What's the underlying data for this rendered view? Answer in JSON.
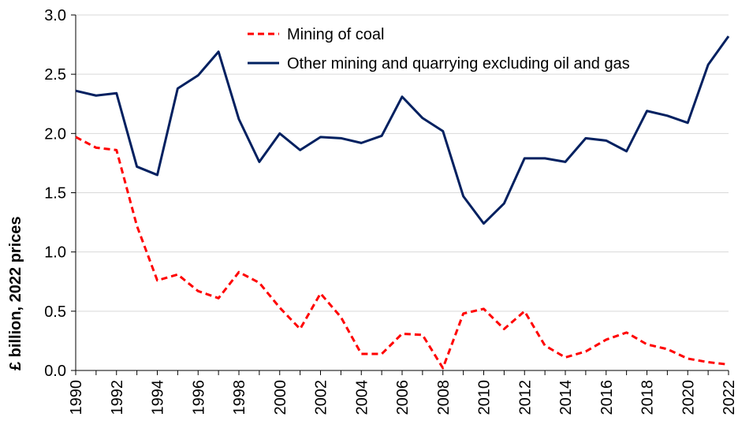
{
  "chart_data": {
    "type": "line",
    "title": "",
    "xlabel": "",
    "ylabel": "£ billion, 2022 prices",
    "ylim": [
      0,
      3.0
    ],
    "yticks": [
      "0.0",
      "0.5",
      "1.0",
      "1.5",
      "2.0",
      "2.5",
      "3.0"
    ],
    "xticks": [
      "1990",
      "1992",
      "1994",
      "1996",
      "1998",
      "2000",
      "2002",
      "2004",
      "2006",
      "2008",
      "2010",
      "2012",
      "2014",
      "2016",
      "2018",
      "2020",
      "2022"
    ],
    "grid": "horizontal",
    "legend_position": "top-center",
    "x": [
      1990,
      1991,
      1992,
      1993,
      1994,
      1995,
      1996,
      1997,
      1998,
      1999,
      2000,
      2001,
      2002,
      2003,
      2004,
      2005,
      2006,
      2007,
      2008,
      2009,
      2010,
      2011,
      2012,
      2013,
      2014,
      2015,
      2016,
      2017,
      2018,
      2019,
      2020,
      2021,
      2022
    ],
    "series": [
      {
        "name": "Mining of coal",
        "color": "#ff0000",
        "style": "dashed",
        "values": [
          1.97,
          1.88,
          1.86,
          1.22,
          0.76,
          0.81,
          0.67,
          0.61,
          0.83,
          0.74,
          0.53,
          0.35,
          0.65,
          0.45,
          0.14,
          0.14,
          0.31,
          0.3,
          0.02,
          0.48,
          0.52,
          0.35,
          0.5,
          0.21,
          0.11,
          0.16,
          0.26,
          0.32,
          0.22,
          0.18,
          0.1,
          0.07,
          0.05
        ]
      },
      {
        "name": "Other mining and quarrying excluding oil and gas",
        "color": "#002060",
        "style": "solid",
        "values": [
          2.36,
          2.32,
          2.34,
          1.72,
          1.65,
          2.38,
          2.49,
          2.69,
          2.12,
          1.76,
          2.0,
          1.86,
          1.97,
          1.96,
          1.92,
          1.98,
          2.31,
          2.13,
          2.02,
          1.47,
          1.24,
          1.41,
          1.79,
          1.79,
          1.76,
          1.96,
          1.94,
          1.85,
          2.19,
          2.15,
          2.09,
          2.58,
          2.82
        ]
      }
    ]
  }
}
